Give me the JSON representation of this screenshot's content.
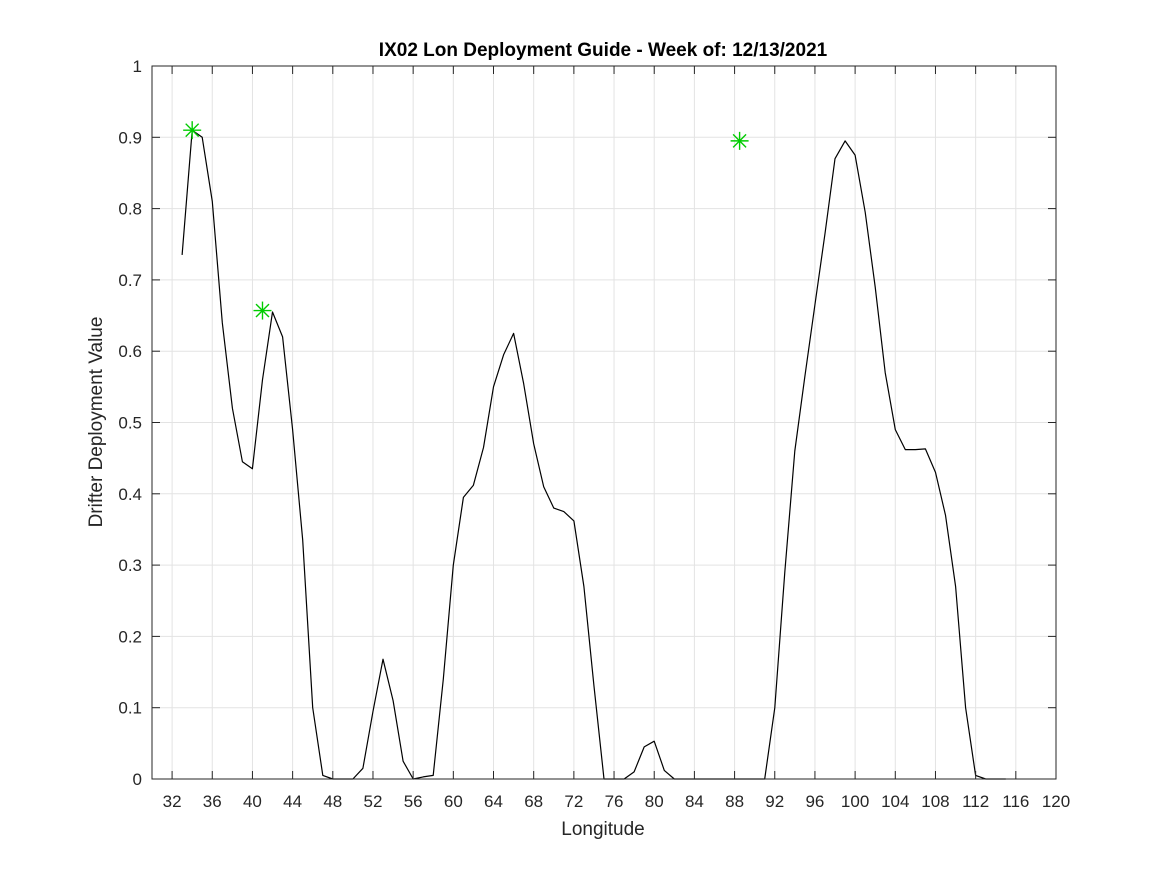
{
  "chart_data": {
    "type": "line",
    "title": "IX02 Lon Deployment Guide - Week of: 12/13/2021",
    "xlabel": "Longitude",
    "ylabel": "Drifter Deployment Value",
    "xlim": [
      30,
      120
    ],
    "ylim": [
      0,
      1
    ],
    "xticks": [
      32,
      36,
      40,
      44,
      48,
      52,
      56,
      60,
      64,
      68,
      72,
      76,
      80,
      84,
      88,
      92,
      96,
      100,
      104,
      108,
      112,
      116,
      120
    ],
    "yticks": [
      0,
      0.1,
      0.2,
      0.3,
      0.4,
      0.5,
      0.6,
      0.7,
      0.8,
      0.9,
      1
    ],
    "xtick_labels": [
      "32",
      "36",
      "40",
      "44",
      "48",
      "52",
      "56",
      "60",
      "64",
      "68",
      "72",
      "76",
      "80",
      "84",
      "88",
      "92",
      "96",
      "100",
      "104",
      "108",
      "112",
      "116",
      "120"
    ],
    "ytick_labels": [
      "0",
      "0.1",
      "0.2",
      "0.3",
      "0.4",
      "0.5",
      "0.6",
      "0.7",
      "0.8",
      "0.9",
      "1"
    ],
    "grid": true,
    "series": [
      {
        "color": "#000000",
        "x": [
          33,
          34,
          35,
          36,
          37,
          38,
          39,
          40,
          41,
          42,
          43,
          44,
          45,
          46,
          47,
          48,
          49,
          50,
          51,
          52,
          53,
          54,
          55,
          56,
          57,
          58,
          59,
          60,
          61,
          62,
          63,
          64,
          65,
          66,
          67,
          68,
          69,
          70,
          71,
          72,
          73,
          74,
          75,
          76,
          77,
          78,
          79,
          80,
          81,
          82,
          83,
          84,
          85,
          86,
          87,
          88,
          89,
          90,
          91,
          92,
          93,
          94,
          95,
          96,
          97,
          98,
          99,
          100,
          101,
          102,
          103,
          104,
          105,
          106,
          107,
          108,
          109,
          110,
          111,
          112,
          113,
          114,
          115
        ],
        "y": [
          0.735,
          0.91,
          0.9,
          0.81,
          0.64,
          0.52,
          0.445,
          0.435,
          0.56,
          0.655,
          0.62,
          0.49,
          0.335,
          0.1,
          0.005,
          0.0,
          0.0,
          0.0,
          0.015,
          0.095,
          0.168,
          0.11,
          0.025,
          0.0,
          0.003,
          0.005,
          0.14,
          0.3,
          0.395,
          0.412,
          0.465,
          0.55,
          0.595,
          0.625,
          0.555,
          0.47,
          0.41,
          0.38,
          0.375,
          0.362,
          0.27,
          0.13,
          0.0,
          0.0,
          0.0,
          0.01,
          0.045,
          0.053,
          0.012,
          0.0,
          0.0,
          0.0,
          0.0,
          0.0,
          0.0,
          0.0,
          0.0,
          0.0,
          0.0,
          0.1,
          0.29,
          0.46,
          0.565,
          0.665,
          0.765,
          0.87,
          0.895,
          0.875,
          0.795,
          0.69,
          0.57,
          0.49,
          0.462,
          0.462,
          0.463,
          0.43,
          0.37,
          0.27,
          0.1,
          0.005,
          0.0,
          0.0,
          0.0
        ]
      },
      {
        "type": "scatter",
        "marker": "asterisk",
        "color": "#00cc00",
        "x": [
          34,
          41,
          88.5
        ],
        "y": [
          0.91,
          0.657,
          0.895
        ]
      }
    ]
  }
}
